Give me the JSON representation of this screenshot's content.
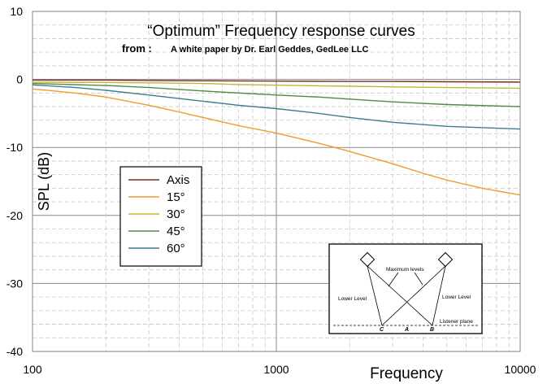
{
  "chart_data": {
    "type": "line",
    "title": "“Optimum” Frequency response curves",
    "subtitle_prefix": "from :",
    "subtitle": "A white paper by Dr. Earl Geddes, GedLee LLC",
    "xlabel": "Frequency",
    "ylabel": "SPL (dB)",
    "xscale": "log",
    "xlim": [
      100,
      10000
    ],
    "ylim": [
      -40,
      10
    ],
    "xticks": [
      "100",
      "1000",
      "10000"
    ],
    "yticks": [
      "10",
      "0",
      "-10",
      "-20",
      "-30",
      "-40"
    ],
    "grid": true,
    "legend_position": "left-center",
    "series": [
      {
        "name": "Axis",
        "color": "#7b2b25",
        "x": [
          100,
          200,
          300,
          500,
          1000,
          2000,
          3000,
          5000,
          10000
        ],
        "y": [
          -0.1,
          -0.1,
          -0.15,
          -0.2,
          -0.25,
          -0.3,
          -0.3,
          -0.35,
          -0.4
        ]
      },
      {
        "name": "15°",
        "color": "#f39a2f",
        "x": [
          100,
          150,
          200,
          300,
          400,
          500,
          700,
          1000,
          1500,
          2000,
          3000,
          4000,
          5000,
          7000,
          10000
        ],
        "y": [
          -1.4,
          -2.0,
          -2.6,
          -3.8,
          -4.8,
          -5.6,
          -6.8,
          -7.9,
          -9.4,
          -10.6,
          -12.4,
          -13.8,
          -14.8,
          -16.0,
          -17.0
        ]
      },
      {
        "name": "30°",
        "color": "#c2b53a",
        "x": [
          100,
          200,
          300,
          500,
          700,
          1000,
          2000,
          3000,
          5000,
          10000
        ],
        "y": [
          -0.4,
          -0.45,
          -0.5,
          -0.6,
          -0.75,
          -0.85,
          -1.0,
          -1.1,
          -1.2,
          -1.3
        ]
      },
      {
        "name": "45°",
        "color": "#4e8b3e",
        "x": [
          100,
          200,
          300,
          500,
          700,
          1000,
          1500,
          2000,
          3000,
          5000,
          10000
        ],
        "y": [
          -0.6,
          -0.9,
          -1.2,
          -1.7,
          -2.0,
          -2.3,
          -2.6,
          -2.9,
          -3.3,
          -3.7,
          -4.0
        ]
      },
      {
        "name": "60°",
        "color": "#3d7d8c",
        "x": [
          100,
          150,
          200,
          300,
          500,
          700,
          1000,
          1500,
          2000,
          3000,
          5000,
          10000
        ],
        "y": [
          -0.8,
          -1.2,
          -1.6,
          -2.3,
          -3.2,
          -3.8,
          -4.3,
          -5.0,
          -5.6,
          -6.3,
          -6.9,
          -7.3
        ]
      }
    ]
  },
  "inset": {
    "label_maximum_levels": "Maximum levels",
    "label_lower_level_left": "Lower Level",
    "label_lower_level_right": "Lower Level",
    "label_listener_plane": "Listener plane",
    "letter_c": "C",
    "letter_a": "A",
    "letter_b": "B"
  }
}
